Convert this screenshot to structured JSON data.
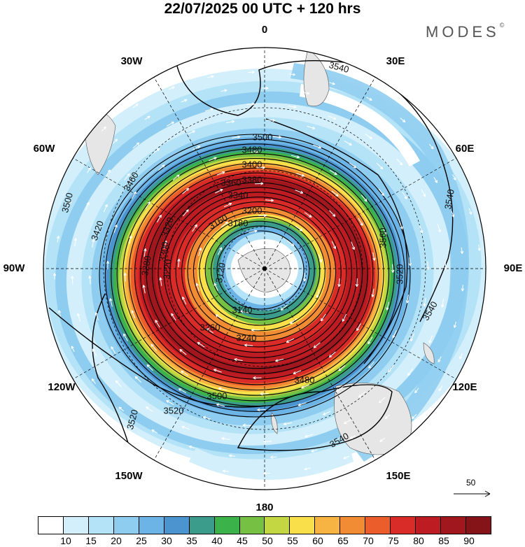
{
  "header": {
    "title": "22/07/2025  00 UTC  + 120 hrs",
    "logo_text": "MODES",
    "logo_mark": "©"
  },
  "map": {
    "projection": "polar stereographic, south pole",
    "longitude_labels": [
      "0",
      "30E",
      "60E",
      "90E",
      "120E",
      "150E",
      "180",
      "150W",
      "120W",
      "90W",
      "60W",
      "30W"
    ],
    "contour_labels": [
      "3540",
      "3500",
      "3480",
      "3460",
      "3420",
      "3400",
      "3380",
      "3360",
      "3340",
      "3320",
      "3300",
      "3280",
      "3260",
      "3240",
      "3220",
      "3200",
      "3180",
      "3160",
      "3140",
      "3120",
      "3480",
      "3500",
      "3520",
      "3540",
      "3540",
      "3520",
      "3520",
      "3500",
      "3560",
      "3540"
    ],
    "vector_reference": "50"
  },
  "legend": {
    "labels": [
      "10",
      "15",
      "20",
      "25",
      "30",
      "35",
      "40",
      "45",
      "50",
      "55",
      "60",
      "65",
      "70",
      "75",
      "80",
      "85",
      "90"
    ],
    "colors": [
      "#ffffff",
      "#d2effb",
      "#b4e3f8",
      "#8fcdf0",
      "#6cb4e6",
      "#4c94cf",
      "#3c9c8c",
      "#3cb34a",
      "#76c043",
      "#c3d743",
      "#f9e04a",
      "#f8b443",
      "#f18c34",
      "#eb5d2b",
      "#d92b27",
      "#bd1c22",
      "#a0171d",
      "#841418"
    ]
  }
}
